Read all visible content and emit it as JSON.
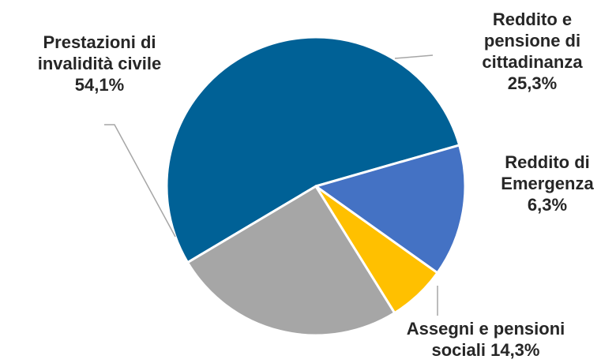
{
  "chart_data": {
    "type": "pie",
    "start_angle_deg": -16,
    "direction": "counterclockwise",
    "slices": [
      {
        "name": "Prestazioni di invalidità civile",
        "value": 54.1,
        "color": "#006196",
        "label_lines": [
          "Prestazioni di",
          "invalidità civile",
          "54,1%"
        ]
      },
      {
        "name": "Reddito e pensione di cittadinanza",
        "value": 25.3,
        "color": "#a6a6a6",
        "label_lines": [
          "Reddito e",
          "pensione di",
          "cittadinanza",
          "25,3%"
        ]
      },
      {
        "name": "Reddito di Emergenza",
        "value": 6.3,
        "color": "#ffc000",
        "label_lines": [
          "Reddito di",
          "Emergenza",
          "6,3%"
        ]
      },
      {
        "name": "Assegni e pensioni sociali",
        "value": 14.3,
        "color": "#4472c4",
        "label_lines": [
          "Assegni e pensioni",
          "sociali 14,3%"
        ]
      }
    ],
    "leader_line_color": "#a6a6a6",
    "border_color": "#ffffff"
  }
}
